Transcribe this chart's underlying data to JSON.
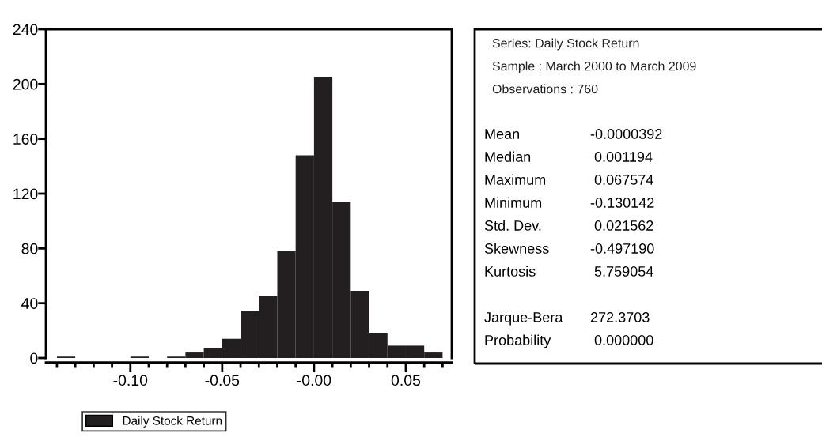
{
  "chart_data": {
    "type": "histogram",
    "bins": [
      -0.14,
      -0.13,
      -0.12,
      -0.11,
      -0.1,
      -0.09,
      -0.08,
      -0.07,
      -0.06,
      -0.05,
      -0.04,
      -0.03,
      -0.02,
      -0.01,
      0.0,
      0.01,
      0.02,
      0.03,
      0.04,
      0.05,
      0.06,
      0.07
    ],
    "series": [
      {
        "name": "Daily Stock Return",
        "color": "#231f20",
        "values": [
          1,
          0,
          0,
          0,
          1,
          0,
          1,
          4,
          7,
          14,
          34,
          45,
          78,
          148,
          205,
          114,
          49,
          18,
          9,
          9,
          4
        ]
      }
    ],
    "xlim": [
      -0.146,
      0.075
    ],
    "xticks": [
      {
        "value": -0.14,
        "label": null
      },
      {
        "value": -0.13,
        "label": null
      },
      {
        "value": -0.12,
        "label": null
      },
      {
        "value": -0.11,
        "label": null
      },
      {
        "value": -0.1,
        "label": "-0.10"
      },
      {
        "value": -0.09,
        "label": null
      },
      {
        "value": -0.08,
        "label": null
      },
      {
        "value": -0.07,
        "label": null
      },
      {
        "value": -0.06,
        "label": null
      },
      {
        "value": -0.05,
        "label": "-0.05"
      },
      {
        "value": -0.04,
        "label": null
      },
      {
        "value": -0.03,
        "label": null
      },
      {
        "value": -0.02,
        "label": null
      },
      {
        "value": -0.01,
        "label": null
      },
      {
        "value": 0.0,
        "label": "-0.00"
      },
      {
        "value": 0.01,
        "label": null
      },
      {
        "value": 0.02,
        "label": null
      },
      {
        "value": 0.03,
        "label": null
      },
      {
        "value": 0.04,
        "label": null
      },
      {
        "value": 0.05,
        "label": "0.05"
      },
      {
        "value": 0.06,
        "label": null
      },
      {
        "value": 0.07,
        "label": null
      }
    ],
    "ylim": [
      0,
      240
    ],
    "yticks": [
      0,
      40,
      80,
      120,
      160,
      200,
      240
    ],
    "grid": false,
    "legend": "bottom",
    "annotations": [
      "Series: Daily Stock Return",
      "Sample : March 2000 to March 2009",
      "Observations : 760",
      "Mean",
      "-0.0000392",
      "Median",
      " 0.001194",
      "Maximum",
      " 0.067574",
      "Minimum",
      "-0.130142",
      "Std. Dev.",
      " 0.021562",
      "Skewness",
      "-0.497190",
      "Kurtosis",
      " 5.759054",
      "Jarque-Bera",
      "272.3703",
      "Probability",
      " 0.000000"
    ]
  }
}
